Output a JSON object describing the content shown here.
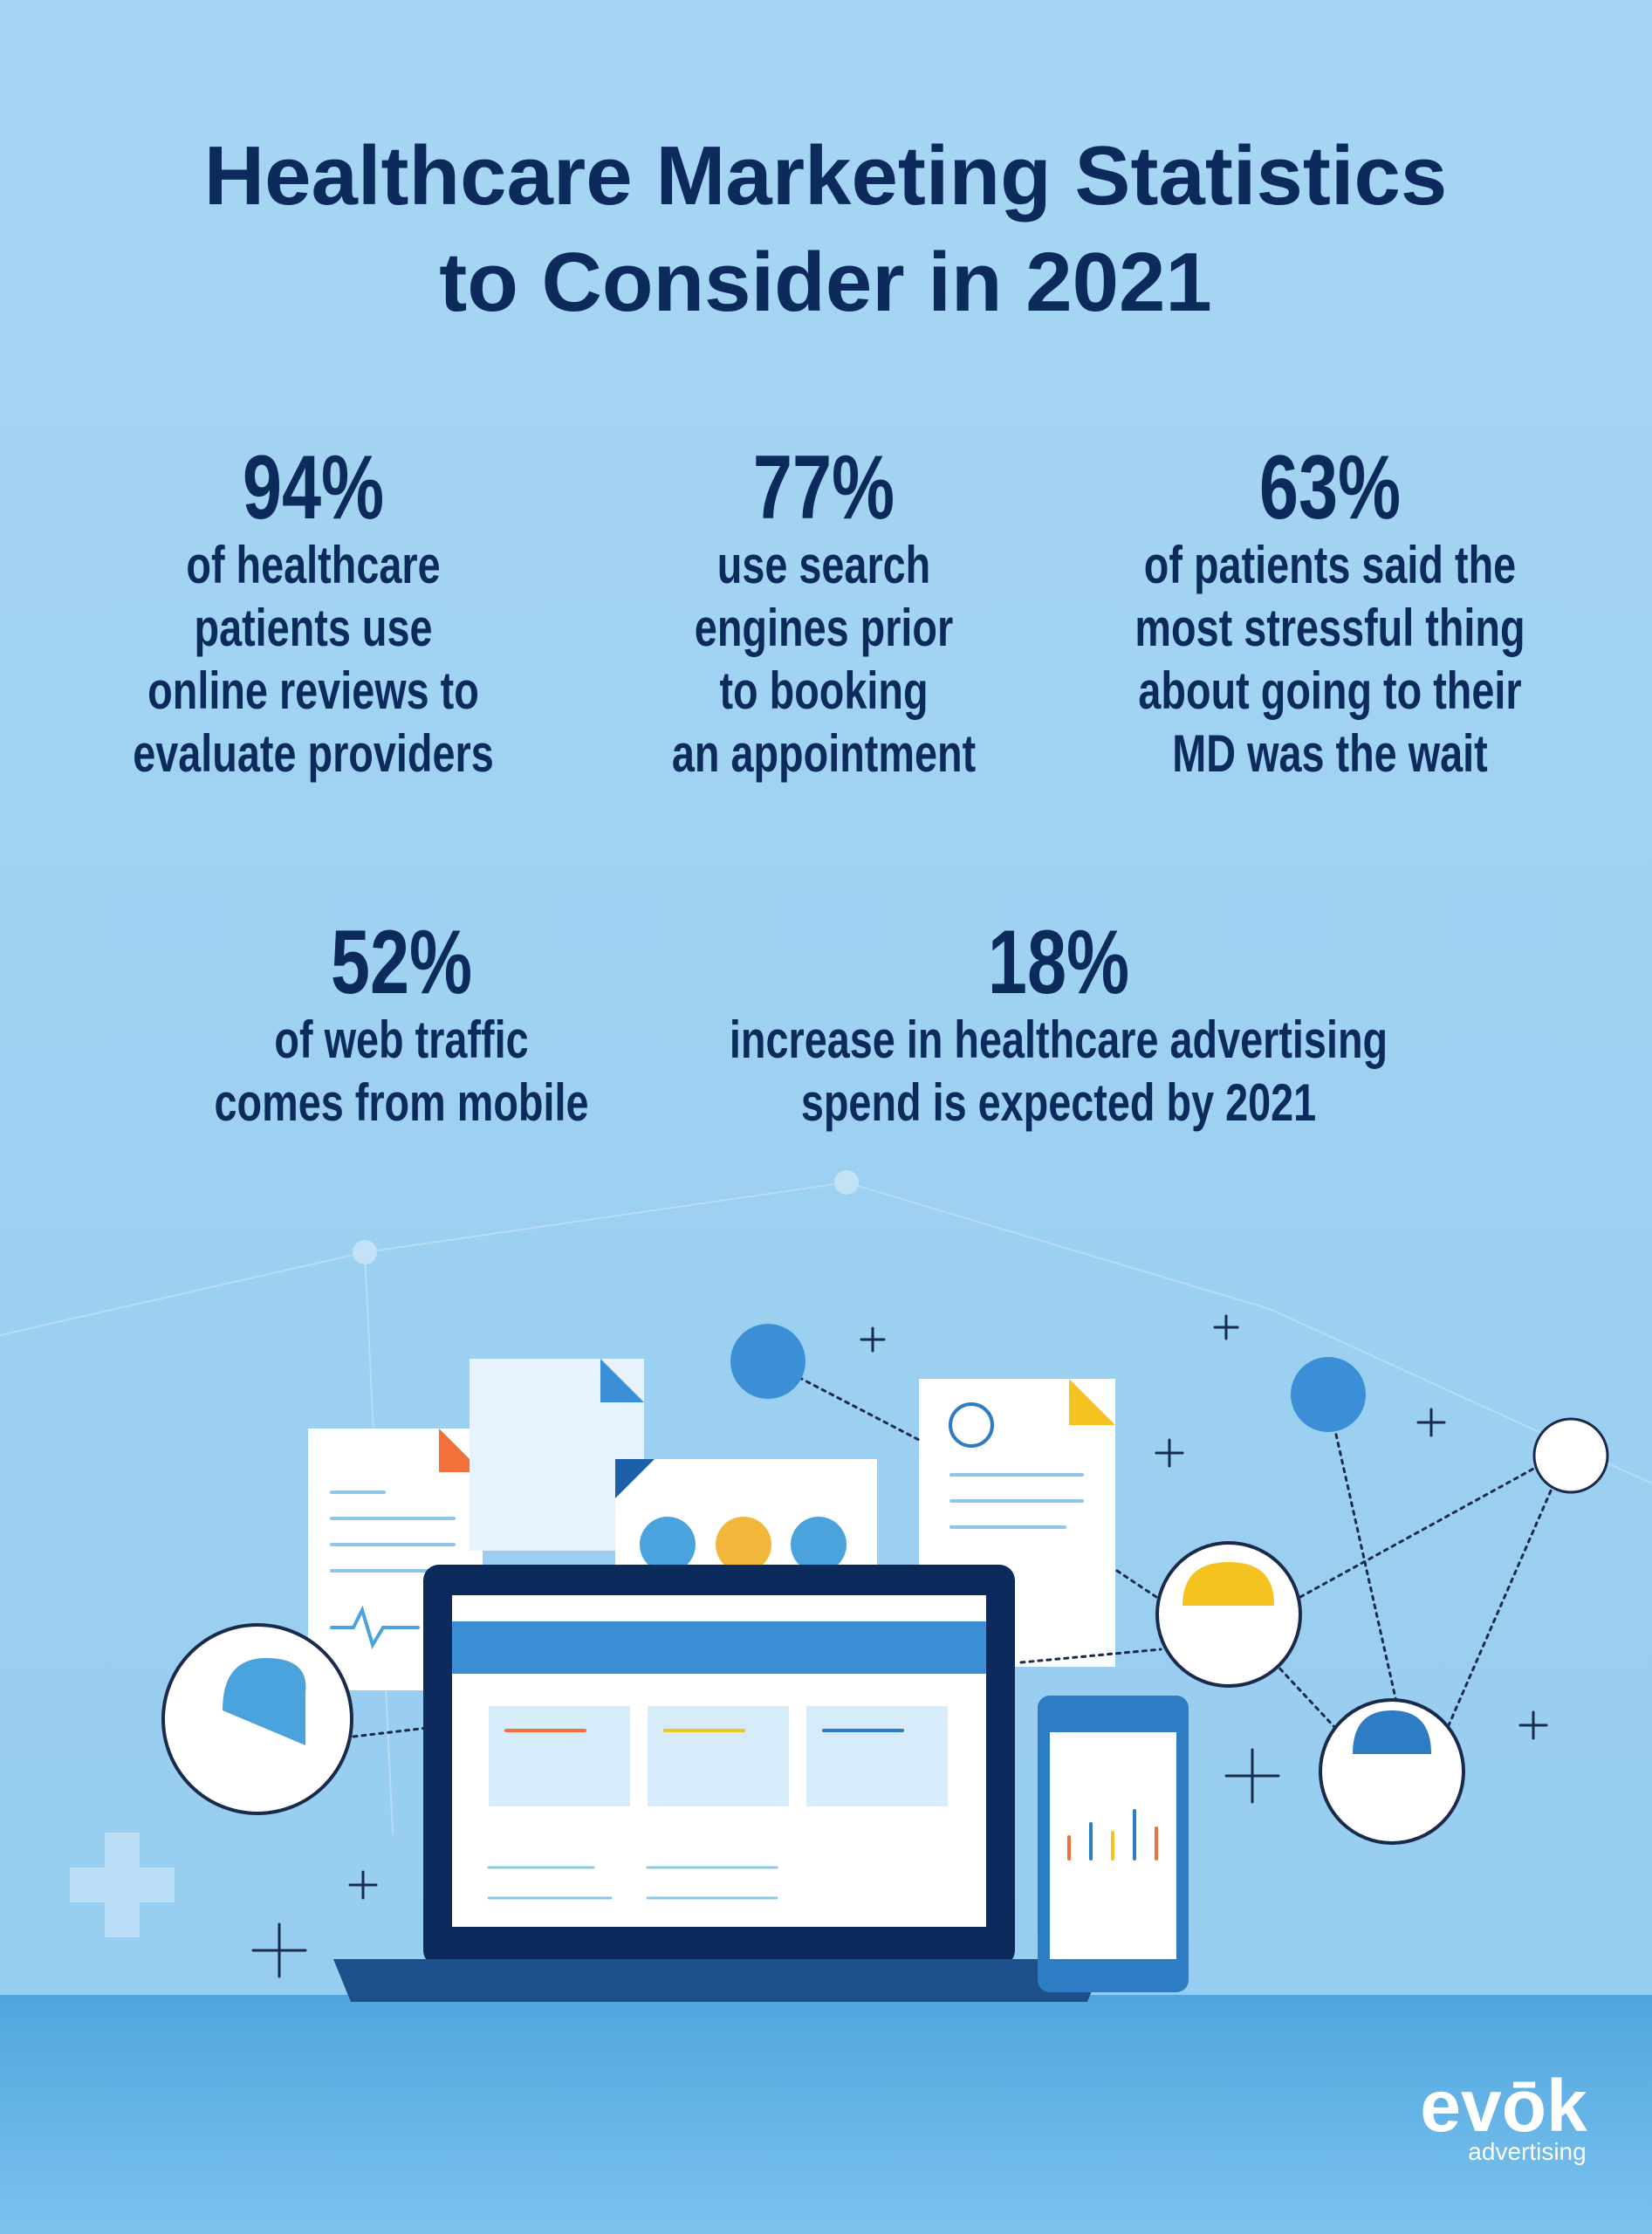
{
  "header": {
    "title_lines": [
      "Healthcare Marketing Statistics",
      "to Consider in 2021"
    ]
  },
  "stats": [
    {
      "value": "94%",
      "lines": [
        "of healthcare",
        "patients use",
        "online reviews to",
        "evaluate providers"
      ]
    },
    {
      "value": "77%",
      "lines": [
        "use search",
        "engines prior",
        "to booking",
        "an appointment"
      ]
    },
    {
      "value": "63%",
      "lines": [
        "of patients said the",
        "most stressful thing",
        "about going to their",
        "MD was the wait"
      ]
    },
    {
      "value": "52%",
      "lines": [
        "of web traffic",
        "comes from mobile"
      ]
    },
    {
      "value": "18%",
      "lines": [
        "increase in healthcare advertising",
        "spend is expected by 2021"
      ]
    }
  ],
  "logo": {
    "name": "evōk",
    "tagline": "advertising"
  }
}
